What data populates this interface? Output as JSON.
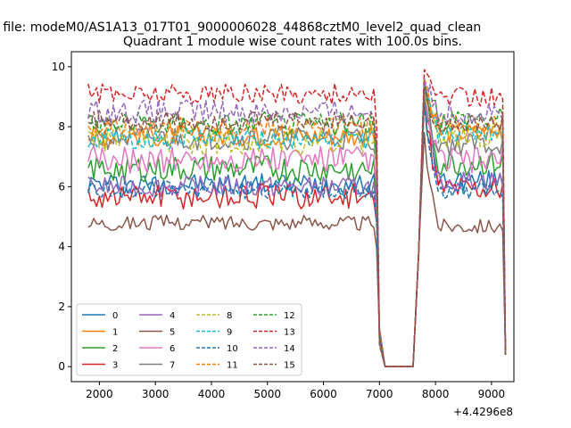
{
  "chart_data": {
    "type": "line",
    "suptitle": "n file: modeM0/AS1A13_017T01_9000006028_44868cztM0_level2_quad_clean",
    "title": "Quadrant 1 module wise count rates with 100.0s bins.",
    "xlabel": "",
    "ylabel": "",
    "x_offset_label": "+4.4296e8",
    "xlim": [
      1500,
      9400
    ],
    "ylim": [
      -0.5,
      10.5
    ],
    "x_ticks": [
      2000,
      3000,
      4000,
      5000,
      6000,
      7000,
      8000,
      9000
    ],
    "y_ticks": [
      0,
      2,
      4,
      6,
      8,
      10
    ],
    "x_tick_labels": [
      "2000",
      "3000",
      "4000",
      "5000",
      "6000",
      "7000",
      "8000",
      "9000"
    ],
    "y_tick_labels": [
      "0",
      "2",
      "4",
      "6",
      "8",
      "10"
    ],
    "legend_position": "lower-left",
    "grid": false,
    "time_segments": [
      [
        1800,
        6900
      ],
      [
        7800,
        9200
      ]
    ],
    "gap_points": [
      {
        "x": 7000,
        "y": 1.0
      },
      {
        "x": 7100,
        "y": 0.0
      },
      {
        "x": 7200,
        "y": 0.0
      },
      {
        "x": 7300,
        "y": 0.0
      },
      {
        "x": 7400,
        "y": 0.0
      },
      {
        "x": 7500,
        "y": 0.0
      },
      {
        "x": 7600,
        "y": 0.0
      },
      {
        "x": 7700,
        "y": 3.5
      }
    ],
    "final_point": {
      "x": 9250,
      "y": 0.4
    },
    "series": [
      {
        "name": "0",
        "color": "#1f77b4",
        "dash": "solid",
        "level1": 6.1,
        "level2": 6.2,
        "noise": 0.35,
        "peak": 9.0
      },
      {
        "name": "1",
        "color": "#ff7f0e",
        "dash": "solid",
        "level1": 7.7,
        "level2": 7.8,
        "noise": 0.35,
        "peak": 9.4
      },
      {
        "name": "2",
        "color": "#2ca02c",
        "dash": "solid",
        "level1": 6.6,
        "level2": 6.8,
        "noise": 0.45,
        "peak": 9.6
      },
      {
        "name": "3",
        "color": "#d62728",
        "dash": "solid",
        "level1": 5.7,
        "level2": 6.0,
        "noise": 0.45,
        "peak": 9.0
      },
      {
        "name": "4",
        "color": "#9467bd",
        "dash": "solid",
        "level1": 6.0,
        "level2": 6.2,
        "noise": 0.35,
        "peak": 9.0
      },
      {
        "name": "5",
        "color": "#8c564b",
        "dash": "solid",
        "level1": 4.8,
        "level2": 4.7,
        "noise": 0.25,
        "peak": 7.8
      },
      {
        "name": "6",
        "color": "#e377c2",
        "dash": "solid",
        "level1": 6.9,
        "level2": 6.9,
        "noise": 0.45,
        "peak": 9.2
      },
      {
        "name": "7",
        "color": "#7f7f7f",
        "dash": "solid",
        "level1": 7.6,
        "level2": 7.4,
        "noise": 0.4,
        "peak": 9.0
      },
      {
        "name": "8",
        "color": "#bcbd22",
        "dash": "dashed",
        "level1": 7.5,
        "level2": 7.7,
        "noise": 0.45,
        "peak": 9.2
      },
      {
        "name": "9",
        "color": "#17becf",
        "dash": "dashed",
        "level1": 7.6,
        "level2": 7.8,
        "noise": 0.35,
        "peak": 9.2
      },
      {
        "name": "10",
        "color": "#1f77b4",
        "dash": "dashed",
        "level1": 5.9,
        "level2": 5.9,
        "noise": 0.3,
        "peak": 8.8
      },
      {
        "name": "11",
        "color": "#ff7f0e",
        "dash": "dashed",
        "level1": 8.0,
        "level2": 8.1,
        "noise": 0.35,
        "peak": 9.6
      },
      {
        "name": "12",
        "color": "#2ca02c",
        "dash": "dashed",
        "level1": 8.1,
        "level2": 8.3,
        "noise": 0.4,
        "peak": 9.4
      },
      {
        "name": "13",
        "color": "#d62728",
        "dash": "dashed",
        "level1": 9.1,
        "level2": 9.0,
        "noise": 0.35,
        "peak": 9.9
      },
      {
        "name": "14",
        "color": "#9467bd",
        "dash": "dashed",
        "level1": 8.5,
        "level2": 8.5,
        "noise": 0.4,
        "peak": 9.6
      },
      {
        "name": "15",
        "color": "#8c564b",
        "dash": "dashed",
        "level1": 8.2,
        "level2": 8.1,
        "noise": 0.35,
        "peak": 9.3
      }
    ]
  }
}
